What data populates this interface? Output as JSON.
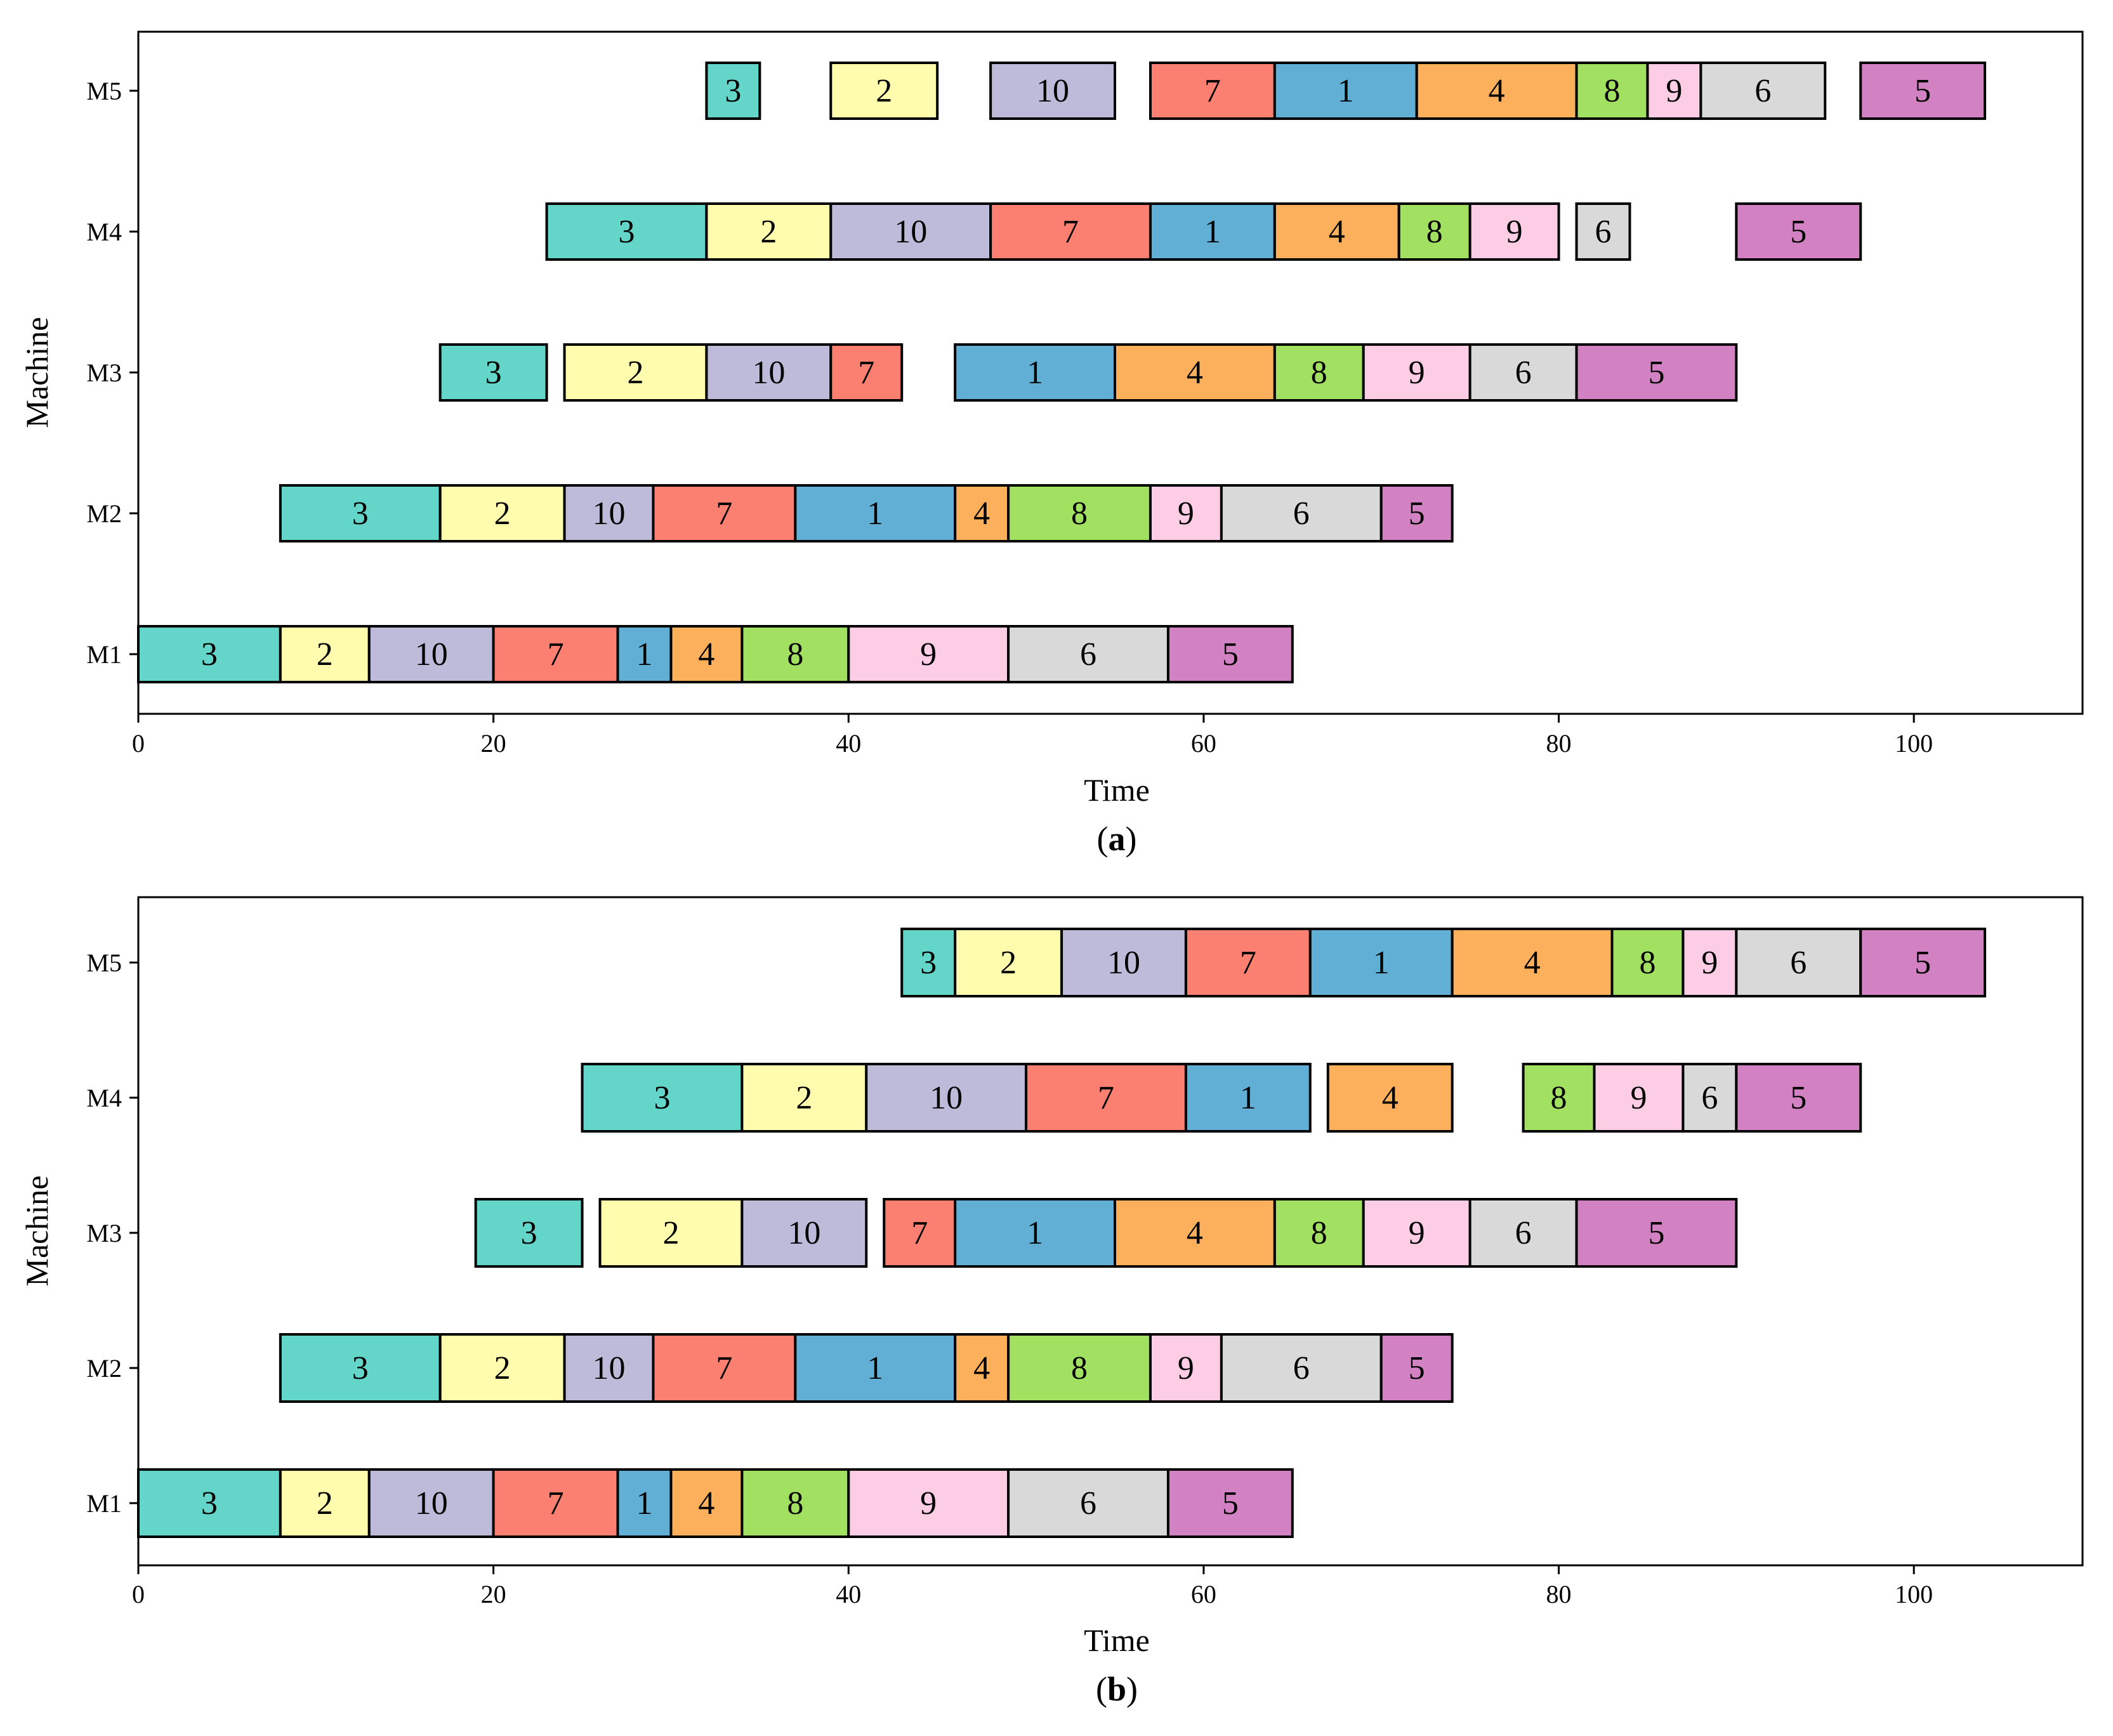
{
  "figure": {
    "colors": {
      "1": "#62AFD5",
      "2": "#FFFDAD",
      "3": "#63D5C9",
      "4": "#FDB05B",
      "5": "#D282C2",
      "6": "#D9D9D9",
      "7": "#FB8071",
      "8": "#A1E061",
      "9": "#FDCDE6",
      "10": "#BEBAD9"
    }
  },
  "chart_data": [
    {
      "type": "gantt",
      "panel_label": "a",
      "xlabel": "Time",
      "ylabel": "Machine",
      "xlim": [
        0,
        109.5
      ],
      "xticks": [
        0,
        20,
        40,
        60,
        80,
        100
      ],
      "machines": [
        "M1",
        "M2",
        "M3",
        "M4",
        "M5"
      ],
      "bars": {
        "M1": [
          [
            3,
            0,
            8
          ],
          [
            2,
            8,
            13
          ],
          [
            10,
            13,
            20
          ],
          [
            7,
            20,
            27
          ],
          [
            1,
            27,
            30
          ],
          [
            4,
            30,
            34
          ],
          [
            8,
            34,
            40
          ],
          [
            9,
            40,
            49
          ],
          [
            6,
            49,
            58
          ],
          [
            5,
            58,
            65
          ]
        ],
        "M2": [
          [
            3,
            8,
            17
          ],
          [
            2,
            17,
            24
          ],
          [
            10,
            24,
            29
          ],
          [
            7,
            29,
            37
          ],
          [
            1,
            37,
            46
          ],
          [
            4,
            46,
            49
          ],
          [
            8,
            49,
            57
          ],
          [
            9,
            57,
            61
          ],
          [
            6,
            61,
            70
          ],
          [
            5,
            70,
            74
          ]
        ],
        "M3": [
          [
            3,
            17,
            23
          ],
          [
            2,
            24,
            32
          ],
          [
            10,
            32,
            39
          ],
          [
            7,
            39,
            43
          ],
          [
            1,
            46,
            55
          ],
          [
            4,
            55,
            64
          ],
          [
            8,
            64,
            69
          ],
          [
            9,
            69,
            75
          ],
          [
            6,
            75,
            81
          ],
          [
            5,
            81,
            90
          ]
        ],
        "M4": [
          [
            3,
            23,
            32
          ],
          [
            2,
            32,
            39
          ],
          [
            10,
            39,
            48
          ],
          [
            7,
            48,
            57
          ],
          [
            1,
            57,
            64
          ],
          [
            4,
            64,
            71
          ],
          [
            8,
            71,
            75
          ],
          [
            9,
            75,
            80
          ],
          [
            6,
            81,
            84
          ],
          [
            5,
            90,
            97
          ]
        ],
        "M5": [
          [
            3,
            32,
            35
          ],
          [
            2,
            39,
            45
          ],
          [
            10,
            48,
            55
          ],
          [
            7,
            57,
            64
          ],
          [
            1,
            64,
            72
          ],
          [
            4,
            72,
            81
          ],
          [
            8,
            81,
            85
          ],
          [
            9,
            85,
            88
          ],
          [
            6,
            88,
            95
          ],
          [
            5,
            97,
            104
          ]
        ]
      }
    },
    {
      "type": "gantt",
      "panel_label": "b",
      "xlabel": "Time",
      "ylabel": "Machine",
      "xlim": [
        0,
        109.5
      ],
      "xticks": [
        0,
        20,
        40,
        60,
        80,
        100
      ],
      "machines": [
        "M1",
        "M2",
        "M3",
        "M4",
        "M5"
      ],
      "bars": {
        "M1": [
          [
            3,
            0,
            8
          ],
          [
            2,
            8,
            13
          ],
          [
            10,
            13,
            20
          ],
          [
            7,
            20,
            27
          ],
          [
            1,
            27,
            30
          ],
          [
            4,
            30,
            34
          ],
          [
            8,
            34,
            40
          ],
          [
            9,
            40,
            49
          ],
          [
            6,
            49,
            58
          ],
          [
            5,
            58,
            65
          ]
        ],
        "M2": [
          [
            3,
            8,
            17
          ],
          [
            2,
            17,
            24
          ],
          [
            10,
            24,
            29
          ],
          [
            7,
            29,
            37
          ],
          [
            1,
            37,
            46
          ],
          [
            4,
            46,
            49
          ],
          [
            8,
            49,
            57
          ],
          [
            9,
            57,
            61
          ],
          [
            6,
            61,
            70
          ],
          [
            5,
            70,
            74
          ]
        ],
        "M3": [
          [
            3,
            19,
            25
          ],
          [
            2,
            26,
            34
          ],
          [
            10,
            34,
            41
          ],
          [
            7,
            42,
            46
          ],
          [
            1,
            46,
            55
          ],
          [
            4,
            55,
            64
          ],
          [
            8,
            64,
            69
          ],
          [
            9,
            69,
            75
          ],
          [
            6,
            75,
            81
          ],
          [
            5,
            81,
            90
          ]
        ],
        "M4": [
          [
            3,
            25,
            34
          ],
          [
            2,
            34,
            41
          ],
          [
            10,
            41,
            50
          ],
          [
            7,
            50,
            59
          ],
          [
            1,
            59,
            66
          ],
          [
            4,
            67,
            74
          ],
          [
            8,
            78,
            82
          ],
          [
            9,
            82,
            87
          ],
          [
            6,
            87,
            90
          ],
          [
            5,
            90,
            97
          ]
        ],
        "M5": [
          [
            3,
            43,
            46
          ],
          [
            2,
            46,
            52
          ],
          [
            10,
            52,
            59
          ],
          [
            7,
            59,
            66
          ],
          [
            1,
            66,
            74
          ],
          [
            4,
            74,
            83
          ],
          [
            8,
            83,
            87
          ],
          [
            9,
            87,
            90
          ],
          [
            6,
            90,
            97
          ],
          [
            5,
            97,
            104
          ]
        ]
      }
    }
  ]
}
